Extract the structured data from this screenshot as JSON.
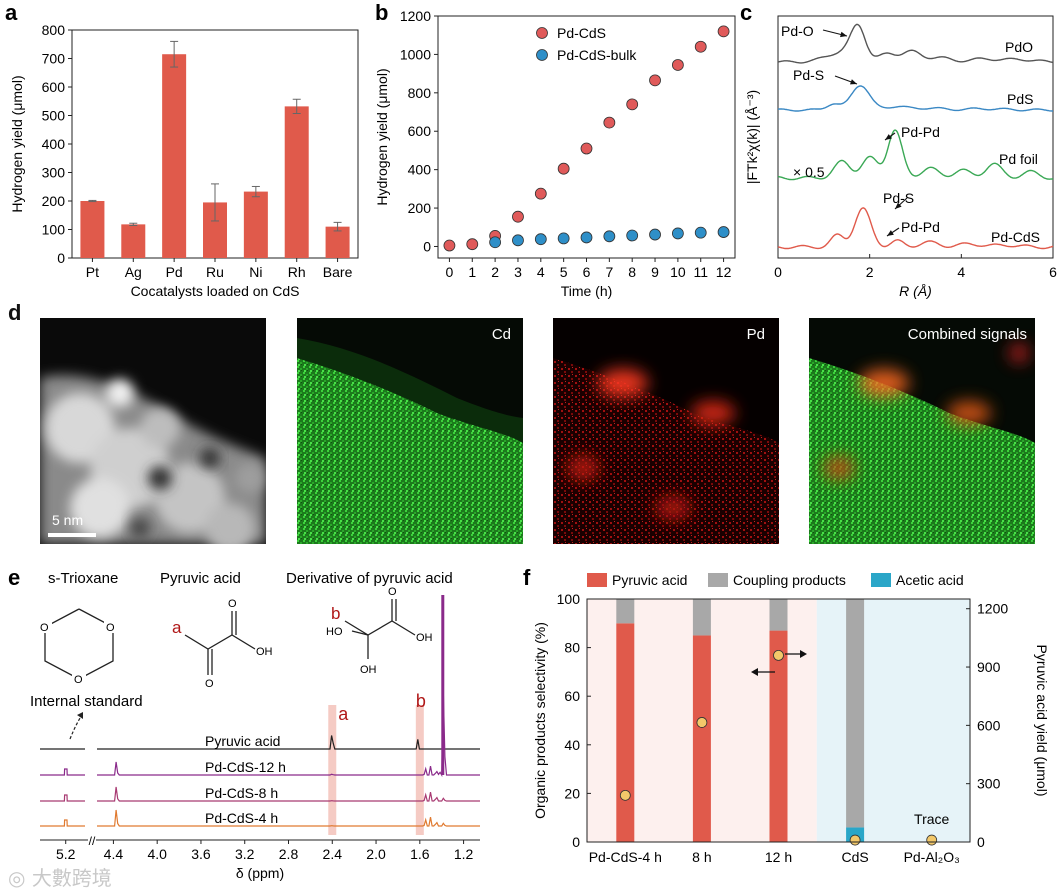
{
  "panels": {
    "a": {
      "label": "a"
    },
    "b": {
      "label": "b"
    },
    "c": {
      "label": "c"
    },
    "d": {
      "label": "d"
    },
    "e": {
      "label": "e"
    },
    "f": {
      "label": "f"
    }
  },
  "chart_data": [
    {
      "id": "a",
      "type": "bar",
      "categories": [
        "Pt",
        "Ag",
        "Pd",
        "Ru",
        "Ni",
        "Rh",
        "Bare"
      ],
      "values": [
        200,
        118,
        715,
        195,
        233,
        532,
        110
      ],
      "errors": [
        2,
        4,
        45,
        65,
        18,
        25,
        15
      ],
      "ylabel": "Hydrogen yield (μmol)",
      "xlabel": "Cocatalysts loaded on CdS",
      "ylim": [
        0,
        800
      ],
      "yticks": [
        "0",
        "100",
        "200",
        "300",
        "400",
        "500",
        "600",
        "700",
        "800"
      ],
      "color": "#e05a4b"
    },
    {
      "id": "b",
      "type": "scatter",
      "xlabel": "Time (h)",
      "ylabel": "Hydrogen yield (μmol)",
      "xlim": [
        -0.5,
        12.5
      ],
      "ylim": [
        -60,
        1200
      ],
      "xticks": [
        "0",
        "1",
        "2",
        "3",
        "4",
        "5",
        "6",
        "7",
        "8",
        "9",
        "10",
        "11",
        "12"
      ],
      "yticks": [
        "0",
        "200",
        "400",
        "600",
        "800",
        "1000",
        "1200"
      ],
      "series": [
        {
          "name": "Pd-CdS",
          "color": "#e05a5a",
          "x": [
            0,
            1,
            2,
            3,
            4,
            5,
            6,
            7,
            8,
            9,
            10,
            11,
            12
          ],
          "y": [
            5,
            12,
            55,
            155,
            275,
            405,
            510,
            645,
            740,
            865,
            945,
            1040,
            1120
          ]
        },
        {
          "name": "Pd-CdS-bulk",
          "color": "#2e8fc8",
          "x": [
            2,
            3,
            4,
            5,
            6,
            7,
            8,
            9,
            10,
            11,
            12
          ],
          "y": [
            22,
            32,
            38,
            42,
            47,
            53,
            57,
            62,
            68,
            72,
            75
          ]
        }
      ],
      "legend": "top-right"
    },
    {
      "id": "c",
      "type": "line",
      "xlabel": "R (Å)",
      "ylabel": "|FTk²χ(k)| (Å⁻³)",
      "xlim": [
        0,
        6
      ],
      "xticks": [
        "0",
        "2",
        "4",
        "6"
      ],
      "series": [
        {
          "name": "PdO",
          "color": "#555555",
          "offset": 3
        },
        {
          "name": "PdS",
          "color": "#3a88c4",
          "offset": 2
        },
        {
          "name": "Pd foil",
          "color": "#3aa855",
          "offset": 1
        },
        {
          "name": "Pd-CdS",
          "color": "#e05a4b",
          "offset": 0
        }
      ],
      "annotations": [
        "Pd-O",
        "Pd-S",
        "Pd-Pd",
        "× 0.5",
        "Pd-S",
        "Pd-Pd"
      ]
    },
    {
      "id": "f",
      "type": "bar",
      "categories": [
        "Pd-CdS-4 h",
        "8 h",
        "12 h",
        "CdS",
        "Pd-Al₂O₃"
      ],
      "series": [
        {
          "name": "Pyruvic acid",
          "color": "#e05a4b",
          "values": [
            90,
            85,
            87,
            0,
            0
          ]
        },
        {
          "name": "Coupling products",
          "color": "#a8a8a8",
          "values": [
            10,
            15,
            13,
            94,
            0
          ]
        },
        {
          "name": "Acetic acid",
          "color": "#2aa6c8",
          "values": [
            0,
            0,
            0,
            6,
            0
          ]
        }
      ],
      "yield_points": [
        240,
        615,
        960,
        10,
        10
      ],
      "ylabel": "Organic products selectivity (%)",
      "ylabel_right": "Pyruvic acid yield (μmol)",
      "ylim": [
        0,
        100
      ],
      "ylim_right": [
        0,
        1250
      ],
      "yticks": [
        "0",
        "20",
        "40",
        "60",
        "80",
        "100"
      ],
      "yticks_right": [
        "0",
        "300",
        "600",
        "900",
        "1200"
      ],
      "annotation": "Trace"
    }
  ],
  "micrographs": {
    "scale_bar": "5 nm",
    "cd_label": "Cd",
    "pd_label": "Pd",
    "combined_label": "Combined signals"
  },
  "nmr": {
    "title_trioxane": "s-Trioxane",
    "title_pyruvic": "Pyruvic acid",
    "title_derivative": "Derivative of pyruvic acid",
    "marker_a": "a",
    "marker_b": "b",
    "internal_standard": "Internal standard",
    "spectra": [
      "Pyruvic acid",
      "Pd-CdS-12 h",
      "Pd-CdS-8 h",
      "Pd-CdS-4 h"
    ],
    "xticks": [
      "5.2",
      "4.4",
      "4.0",
      "3.6",
      "3.2",
      "2.8",
      "2.4",
      "2.0",
      "1.6",
      "1.2"
    ],
    "xlabel": "δ (ppm)",
    "atom_O": "O",
    "atom_OH": "OH",
    "atom_HO": "HO"
  },
  "watermark": "大數跨境"
}
